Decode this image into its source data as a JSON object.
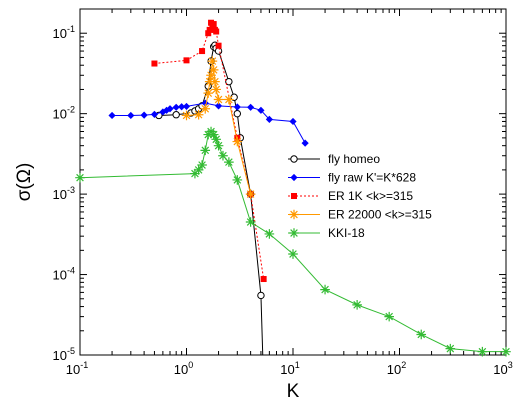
{
  "chart_data": {
    "type": "line",
    "xlabel": "K",
    "ylabel": "σ(Ω)",
    "xscale": "log",
    "yscale": "log",
    "xlim": [
      0.1,
      1000
    ],
    "ylim": [
      1e-05,
      0.2
    ],
    "x_ticks": [
      {
        "base": "10",
        "exp": "-1"
      },
      {
        "base": "10",
        "exp": "0"
      },
      {
        "base": "10",
        "exp": "1"
      },
      {
        "base": "10",
        "exp": "2"
      },
      {
        "base": "10",
        "exp": "3"
      }
    ],
    "y_ticks": [
      {
        "base": "10",
        "exp": "-5"
      },
      {
        "base": "10",
        "exp": "-4"
      },
      {
        "base": "10",
        "exp": "-3"
      },
      {
        "base": "10",
        "exp": "-2"
      },
      {
        "base": "10",
        "exp": "-1"
      }
    ],
    "grid": false,
    "legend_position": "right-middle",
    "series": [
      {
        "name": "fly homeo",
        "color": "#000000",
        "marker": "open-circle",
        "dash": "solid",
        "x": [
          0.55,
          0.8,
          1.1,
          1.2,
          1.3,
          1.4,
          1.6,
          1.7,
          1.8,
          1.85,
          1.9,
          2.0,
          2.5,
          2.8,
          3.0,
          3.2,
          4.0,
          5.0,
          5.2
        ],
        "y": [
          0.0095,
          0.0097,
          0.0102,
          0.0108,
          0.0115,
          0.0125,
          0.022,
          0.045,
          0.068,
          0.071,
          0.065,
          0.06,
          0.025,
          0.016,
          0.01,
          0.005,
          0.001,
          5.5e-05,
          1e-05
        ]
      },
      {
        "name": "fly raw K'=K*628",
        "color": "#0000ff",
        "marker": "filled-diamond",
        "dash": "solid",
        "x": [
          0.2,
          0.3,
          0.4,
          0.5,
          0.6,
          0.65,
          0.7,
          0.8,
          0.9,
          1.0,
          1.5,
          2.0,
          3.0,
          4.0,
          5.0,
          6.0,
          10.0,
          13.0
        ],
        "y": [
          0.0095,
          0.0095,
          0.0096,
          0.0098,
          0.0105,
          0.011,
          0.0115,
          0.012,
          0.0122,
          0.0123,
          0.0135,
          0.0125,
          0.0121,
          0.012,
          0.011,
          0.0085,
          0.008,
          0.0043
        ]
      },
      {
        "name": "ER 1K <k>=315",
        "color": "#ff0000",
        "marker": "filled-square",
        "dash": "dotted",
        "x": [
          0.5,
          1.0,
          1.4,
          1.6,
          1.65,
          1.7,
          1.75,
          1.8,
          1.85,
          1.9,
          2.0,
          3.0,
          4.0,
          5.3
        ],
        "y": [
          0.042,
          0.046,
          0.06,
          0.1,
          0.11,
          0.135,
          0.12,
          0.13,
          0.11,
          0.105,
          0.07,
          0.005,
          0.001,
          8.8e-05
        ]
      },
      {
        "name": "ER 22000 <k>=315",
        "color": "#ff9900",
        "marker": "asterisk",
        "dash": "solid",
        "x": [
          1.0,
          1.3,
          1.5,
          1.6,
          1.65,
          1.7,
          1.75,
          1.8,
          1.85,
          1.9,
          2.0,
          2.5,
          3.0,
          4.0
        ],
        "y": [
          0.0095,
          0.0097,
          0.0115,
          0.018,
          0.025,
          0.03,
          0.045,
          0.035,
          0.025,
          0.02,
          0.015,
          0.015,
          0.0045,
          0.001
        ]
      },
      {
        "name": "KKI-18",
        "color": "#33bb33",
        "marker": "asterisk",
        "dash": "solid",
        "x": [
          0.1,
          1.2,
          1.3,
          1.4,
          1.5,
          1.6,
          1.7,
          1.8,
          1.9,
          2.0,
          2.2,
          2.5,
          3.0,
          4.0,
          6.0,
          10.0,
          20.0,
          40.0,
          80.0,
          160.0,
          300.0,
          600.0,
          1000.0
        ],
        "y": [
          0.0016,
          0.0018,
          0.002,
          0.0023,
          0.0035,
          0.0055,
          0.006,
          0.0055,
          0.0048,
          0.004,
          0.003,
          0.0025,
          0.0015,
          0.00045,
          0.00032,
          0.00018,
          6.5e-05,
          4.2e-05,
          3e-05,
          1.8e-05,
          1.2e-05,
          1.1e-05,
          1.1e-05
        ]
      }
    ]
  }
}
